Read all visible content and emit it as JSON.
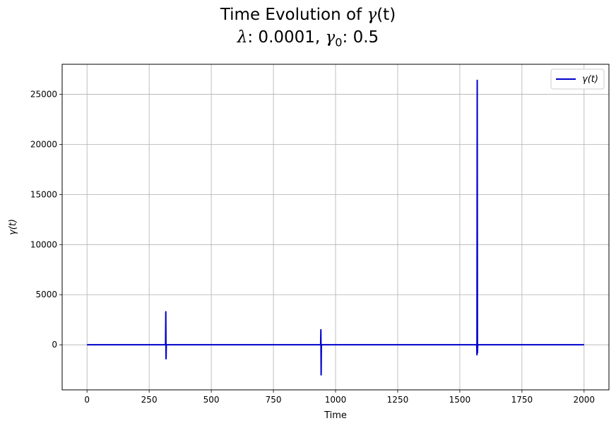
{
  "chart_data": {
    "type": "line",
    "title_lines": [
      {
        "prefix": "Time Evolution of ",
        "math": "γ",
        "suffix": "(t)"
      },
      {
        "math": "λ",
        "after_math": ": 0.0001, ",
        "math2": "γ",
        "sub": "0",
        "after_sub": ": 0.5"
      }
    ],
    "xlabel": "Time",
    "ylabel": "γ(t)",
    "xlim": [
      -100,
      2100
    ],
    "ylim": [
      -4500,
      28000
    ],
    "xticks": [
      0,
      250,
      500,
      750,
      1000,
      1250,
      1500,
      1750,
      2000
    ],
    "yticks": [
      0,
      5000,
      10000,
      15000,
      20000,
      25000
    ],
    "grid": true,
    "legend": {
      "placement": "top-right",
      "entries": [
        "γ(t)"
      ]
    },
    "series": [
      {
        "name": "γ(t)",
        "color": "#0000cc",
        "points": [
          [
            0,
            0
          ],
          [
            316,
            0
          ],
          [
            317,
            3300
          ],
          [
            318,
            -1400
          ],
          [
            319,
            0
          ],
          [
            940,
            0
          ],
          [
            941,
            1500
          ],
          [
            942,
            -3000
          ],
          [
            943,
            0
          ],
          [
            1568,
            0
          ],
          [
            1569,
            -1000
          ],
          [
            1570,
            26400
          ],
          [
            1571,
            -800
          ],
          [
            1572,
            0
          ],
          [
            2000,
            0
          ]
        ]
      }
    ]
  }
}
